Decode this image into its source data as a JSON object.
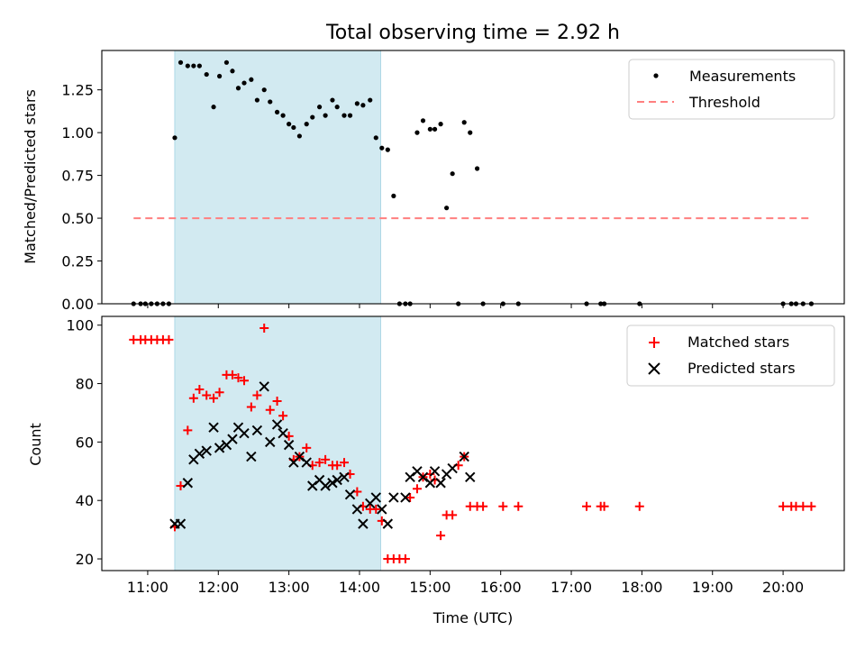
{
  "title": "Total observing time = 2.92 h",
  "colors": {
    "measurements": "#000000",
    "threshold": "#ff7f7f",
    "matched": "#ff0000",
    "predicted": "#000000",
    "span": "#add8e6"
  },
  "chart_data": [
    {
      "type": "scatter",
      "ylabel": "Matched/Predicted stars",
      "ylim": [
        0,
        1.48
      ],
      "yticks": [
        0.0,
        0.25,
        0.5,
        0.75,
        1.0,
        1.25
      ],
      "ytick_labels": [
        "0.00",
        "0.25",
        "0.50",
        "0.75",
        "1.00",
        "1.25"
      ],
      "legend_position": "top-right",
      "legend": [
        "Measurements",
        "Threshold"
      ],
      "observing_span": {
        "start": "11:23",
        "end": "14:18"
      },
      "threshold": {
        "value": 0.5,
        "from": "10:48",
        "to": "20:24"
      },
      "series": [
        {
          "name": "Measurements",
          "x": [
            "10:48",
            "10:54",
            "10:58",
            "11:03",
            "11:08",
            "11:13",
            "11:18",
            "11:23",
            "11:28",
            "11:34",
            "11:39",
            "11:44",
            "11:50",
            "11:56",
            "12:01",
            "12:07",
            "12:12",
            "12:17",
            "12:22",
            "12:28",
            "12:33",
            "12:39",
            "12:44",
            "12:50",
            "12:55",
            "13:00",
            "13:04",
            "13:09",
            "13:15",
            "13:20",
            "13:26",
            "13:31",
            "13:37",
            "13:41",
            "13:47",
            "13:52",
            "13:58",
            "14:03",
            "14:09",
            "14:14",
            "14:19",
            "14:24",
            "14:29",
            "14:34",
            "14:39",
            "14:43",
            "14:49",
            "14:54",
            "15:00",
            "15:04",
            "15:09",
            "15:14",
            "15:19",
            "15:24",
            "15:29",
            "15:34",
            "15:40",
            "15:45",
            "16:02",
            "16:15",
            "17:13",
            "17:25",
            "17:28",
            "17:58",
            "20:00",
            "20:07",
            "20:11",
            "20:17",
            "20:24"
          ],
          "y": [
            0.0,
            0.0,
            0.0,
            0.0,
            0.0,
            0.0,
            0.0,
            0.97,
            1.41,
            1.39,
            1.39,
            1.39,
            1.34,
            1.15,
            1.33,
            1.41,
            1.36,
            1.26,
            1.29,
            1.31,
            1.19,
            1.25,
            1.18,
            1.12,
            1.1,
            1.05,
            1.03,
            0.98,
            1.05,
            1.09,
            1.15,
            1.1,
            1.19,
            1.15,
            1.1,
            1.1,
            1.17,
            1.16,
            1.19,
            0.97,
            0.91,
            0.9,
            0.63,
            0.0,
            0.0,
            0.0,
            1.0,
            1.07,
            1.02,
            1.02,
            1.05,
            0.56,
            0.76,
            0.0,
            1.06,
            1.0,
            0.79,
            0.0,
            0.0,
            0.0,
            0.0,
            0.0,
            0.0,
            0.0,
            0.0,
            0.0,
            0.0,
            0.0,
            0.0
          ]
        }
      ]
    },
    {
      "type": "scatter",
      "xlabel": "Time (UTC)",
      "ylabel": "Count",
      "ylim": [
        16,
        103
      ],
      "yticks": [
        20,
        40,
        60,
        80,
        100
      ],
      "ytick_labels": [
        "20",
        "40",
        "60",
        "80",
        "100"
      ],
      "xticks": [
        "11:00",
        "12:00",
        "13:00",
        "14:00",
        "15:00",
        "16:00",
        "17:00",
        "18:00",
        "19:00",
        "20:00"
      ],
      "xtick_labels": [
        "11:00",
        "12:00",
        "13:00",
        "14:00",
        "15:00",
        "16:00",
        "17:00",
        "18:00",
        "19:00",
        "20:00"
      ],
      "xlim": [
        "10:21",
        "20:52"
      ],
      "legend_position": "top-right",
      "legend": [
        "Matched stars",
        "Predicted stars"
      ],
      "observing_span": {
        "start": "11:23",
        "end": "14:18"
      },
      "series": [
        {
          "name": "Matched stars",
          "x": [
            "10:48",
            "10:54",
            "10:58",
            "11:03",
            "11:08",
            "11:13",
            "11:18",
            "11:23",
            "11:28",
            "11:34",
            "11:39",
            "11:44",
            "11:50",
            "11:56",
            "12:01",
            "12:07",
            "12:12",
            "12:17",
            "12:22",
            "12:28",
            "12:33",
            "12:39",
            "12:44",
            "12:50",
            "12:55",
            "13:00",
            "13:04",
            "13:09",
            "13:15",
            "13:20",
            "13:26",
            "13:31",
            "13:37",
            "13:41",
            "13:47",
            "13:52",
            "13:58",
            "14:03",
            "14:09",
            "14:14",
            "14:19",
            "14:24",
            "14:29",
            "14:34",
            "14:39",
            "14:43",
            "14:49",
            "14:54",
            "15:00",
            "15:04",
            "15:09",
            "15:14",
            "15:19",
            "15:24",
            "15:29",
            "15:34",
            "15:40",
            "15:45",
            "16:02",
            "16:15",
            "17:13",
            "17:25",
            "17:28",
            "17:58",
            "20:00",
            "20:07",
            "20:11",
            "20:17",
            "20:24"
          ],
          "y": [
            95,
            95,
            95,
            95,
            95,
            95,
            95,
            31,
            45,
            64,
            75,
            78,
            76,
            75,
            77,
            83,
            83,
            82,
            81,
            72,
            76,
            99,
            71,
            74,
            69,
            62,
            54,
            55,
            58,
            52,
            53,
            54,
            52,
            52,
            53,
            49,
            43,
            38,
            37,
            37,
            33,
            20,
            20,
            20,
            20,
            41,
            44,
            48,
            49,
            47,
            28,
            35,
            35,
            52,
            55,
            38,
            38,
            38,
            38,
            38,
            38,
            38,
            38,
            38,
            38,
            38,
            38,
            38,
            38
          ]
        },
        {
          "name": "Predicted stars",
          "x": [
            "11:23",
            "11:28",
            "11:34",
            "11:39",
            "11:44",
            "11:50",
            "11:56",
            "12:01",
            "12:07",
            "12:12",
            "12:17",
            "12:22",
            "12:28",
            "12:33",
            "12:39",
            "12:44",
            "12:50",
            "12:55",
            "13:00",
            "13:04",
            "13:09",
            "13:15",
            "13:20",
            "13:26",
            "13:31",
            "13:37",
            "13:41",
            "13:47",
            "13:52",
            "13:58",
            "14:03",
            "14:09",
            "14:14",
            "14:19",
            "14:24",
            "14:29",
            "14:39",
            "14:43",
            "14:49",
            "14:54",
            "15:00",
            "15:04",
            "15:09",
            "15:14",
            "15:19",
            "15:29",
            "15:34"
          ],
          "y": [
            32,
            32,
            46,
            54,
            56,
            57,
            65,
            58,
            59,
            61,
            65,
            63,
            55,
            64,
            79,
            60,
            66,
            63,
            59,
            53,
            55,
            53,
            45,
            47,
            45,
            46,
            47,
            48,
            42,
            37,
            32,
            39,
            41,
            37,
            32,
            41,
            41,
            48,
            50,
            48,
            46,
            50,
            46,
            49,
            51,
            55,
            48
          ]
        }
      ]
    }
  ]
}
